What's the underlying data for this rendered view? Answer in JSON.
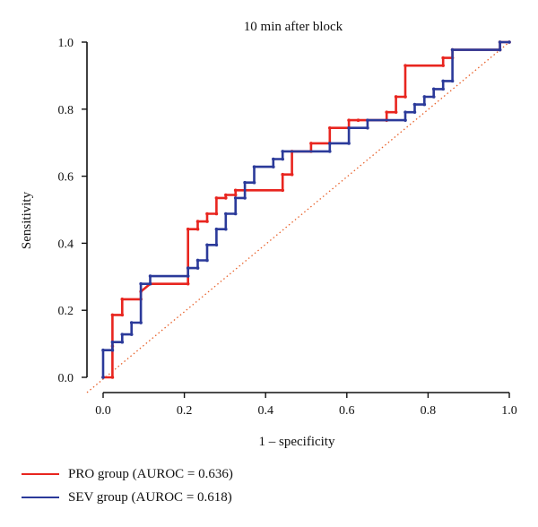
{
  "chart_data": {
    "type": "line",
    "title": "10 min after block",
    "xlabel": "1 – specificity",
    "ylabel": "Sensitivity",
    "xlim": [
      0,
      1
    ],
    "ylim": [
      0,
      1
    ],
    "xticks": [
      "0.0",
      "0.2",
      "0.4",
      "0.6",
      "0.8",
      "1.0"
    ],
    "yticks": [
      "0.0",
      "0.2",
      "0.4",
      "0.6",
      "0.8",
      "1.0"
    ],
    "legend_position": "bottom-left",
    "grid": false,
    "series": [
      {
        "name": "PRO group (AUROC = 0.636)",
        "color": "#e8251f",
        "x": [
          0,
          0.023,
          0.023,
          0.023,
          0.047,
          0.047,
          0.093,
          0.093,
          0.116,
          0.209,
          0.209,
          0.233,
          0.233,
          0.256,
          0.256,
          0.279,
          0.279,
          0.302,
          0.302,
          0.326,
          0.326,
          0.442,
          0.442,
          0.465,
          0.465,
          0.512,
          0.512,
          0.558,
          0.558,
          0.605,
          0.605,
          0.628,
          0.628,
          0.698,
          0.698,
          0.721,
          0.721,
          0.744,
          0.744,
          0.837,
          0.837,
          0.86,
          0.86,
          0.977,
          0.977,
          1.0
        ],
        "y": [
          0,
          0,
          0.093,
          0.186,
          0.186,
          0.233,
          0.233,
          0.256,
          0.279,
          0.279,
          0.442,
          0.442,
          0.465,
          0.465,
          0.488,
          0.488,
          0.535,
          0.535,
          0.544,
          0.544,
          0.558,
          0.558,
          0.605,
          0.605,
          0.674,
          0.674,
          0.698,
          0.698,
          0.744,
          0.744,
          0.767,
          0.767,
          0.767,
          0.767,
          0.791,
          0.791,
          0.837,
          0.837,
          0.93,
          0.93,
          0.953,
          0.953,
          0.977,
          0.977,
          1.0,
          1.0
        ]
      },
      {
        "name": "SEV group (AUROC = 0.618)",
        "color": "#2b3a9a",
        "x": [
          0,
          0,
          0.023,
          0.023,
          0.047,
          0.047,
          0.07,
          0.07,
          0.093,
          0.093,
          0.116,
          0.116,
          0.209,
          0.209,
          0.233,
          0.233,
          0.256,
          0.256,
          0.279,
          0.279,
          0.302,
          0.302,
          0.326,
          0.326,
          0.349,
          0.349,
          0.372,
          0.372,
          0.419,
          0.419,
          0.442,
          0.442,
          0.558,
          0.558,
          0.605,
          0.605,
          0.651,
          0.651,
          0.744,
          0.744,
          0.767,
          0.767,
          0.791,
          0.791,
          0.814,
          0.814,
          0.837,
          0.837,
          0.86,
          0.86,
          0.977,
          0.977,
          1.0
        ],
        "y": [
          0,
          0.081,
          0.081,
          0.105,
          0.105,
          0.128,
          0.128,
          0.163,
          0.163,
          0.279,
          0.279,
          0.302,
          0.302,
          0.326,
          0.326,
          0.349,
          0.349,
          0.395,
          0.395,
          0.442,
          0.442,
          0.488,
          0.488,
          0.535,
          0.535,
          0.581,
          0.581,
          0.628,
          0.628,
          0.651,
          0.651,
          0.674,
          0.674,
          0.698,
          0.698,
          0.744,
          0.744,
          0.767,
          0.767,
          0.791,
          0.791,
          0.814,
          0.814,
          0.837,
          0.837,
          0.86,
          0.86,
          0.884,
          0.884,
          0.977,
          0.977,
          1.0,
          1.0
        ]
      }
    ],
    "reference_line": {
      "style": "dotted",
      "color": "#e8612a",
      "x": [
        0,
        1
      ],
      "y": [
        0,
        1
      ]
    }
  }
}
